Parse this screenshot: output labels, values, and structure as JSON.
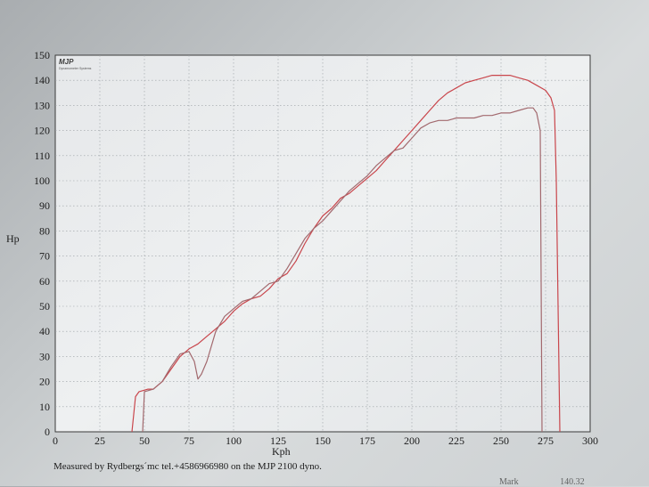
{
  "chart_data": {
    "type": "line",
    "xlabel": "Kph",
    "ylabel": "Hp",
    "xlim": [
      0,
      300
    ],
    "ylim": [
      0,
      150
    ],
    "x_ticks": [
      "0",
      "25",
      "50",
      "75",
      "100",
      "125",
      "150",
      "175",
      "200",
      "225",
      "250",
      "275",
      "300"
    ],
    "y_ticks": [
      "0",
      "10",
      "20",
      "30",
      "40",
      "50",
      "60",
      "70",
      "80",
      "90",
      "100",
      "110",
      "120",
      "130",
      "140",
      "150"
    ],
    "grid": true,
    "series": [
      {
        "color": "#c9464c",
        "x": [
          43,
          45,
          47,
          52,
          55,
          60,
          65,
          70,
          75,
          80,
          85,
          90,
          95,
          100,
          105,
          110,
          115,
          120,
          125,
          130,
          135,
          140,
          145,
          150,
          155,
          160,
          165,
          170,
          175,
          180,
          185,
          190,
          195,
          200,
          205,
          210,
          215,
          220,
          225,
          230,
          235,
          240,
          245,
          250,
          255,
          260,
          265,
          270,
          275,
          278,
          280,
          281,
          283
        ],
        "y": [
          0,
          14,
          16,
          17,
          17,
          20,
          25,
          30,
          33,
          35,
          38,
          41,
          44,
          48,
          51,
          53,
          54,
          57,
          61,
          63,
          68,
          75,
          81,
          86,
          89,
          93,
          95,
          98,
          101,
          104,
          108,
          112,
          116,
          120,
          124,
          128,
          132,
          135,
          137,
          139,
          140,
          141,
          142,
          142,
          142,
          141,
          140,
          138,
          136,
          133,
          128,
          100,
          0
        ]
      },
      {
        "color": "#a2696e",
        "x": [
          49,
          50,
          55,
          60,
          65,
          70,
          75,
          78,
          80,
          82,
          85,
          90,
          95,
          100,
          105,
          110,
          115,
          120,
          125,
          130,
          135,
          140,
          145,
          150,
          155,
          160,
          165,
          170,
          175,
          180,
          185,
          190,
          195,
          200,
          205,
          210,
          215,
          220,
          225,
          230,
          235,
          240,
          245,
          250,
          255,
          260,
          265,
          268,
          270,
          272,
          273
        ],
        "y": [
          0,
          16,
          17,
          20,
          26,
          31,
          32,
          28,
          21,
          23,
          28,
          40,
          46,
          49,
          52,
          53,
          56,
          59,
          60,
          65,
          71,
          77,
          81,
          84,
          88,
          92,
          96,
          99,
          102,
          106,
          109,
          112,
          113,
          117,
          121,
          123,
          124,
          124,
          125,
          125,
          125,
          126,
          126,
          127,
          127,
          128,
          129,
          129,
          127,
          120,
          0
        ]
      }
    ]
  },
  "logo": {
    "text": "MJP",
    "subtitle": "Dynamometer Systems"
  },
  "footer": {
    "note": "Measured by Rydbergs´mc tel.+4586966980 on the MJP 2100 dyno.",
    "corner_left": "Mark",
    "corner_right": "140.32"
  }
}
